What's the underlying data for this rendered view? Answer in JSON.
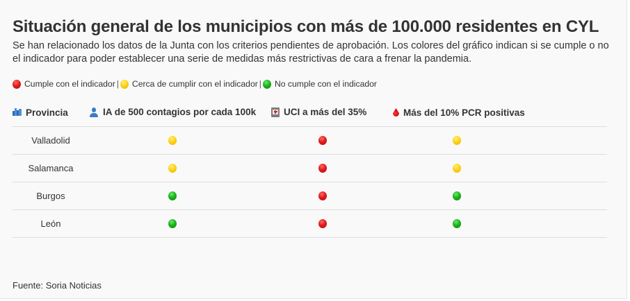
{
  "title": "Situación general de los municipios con más de 100.000 residentes en CYL",
  "subtitle": "Se han relacionado los datos de la Junta con los criterios pendientes de aprobación. Los colores del gráfico indican si se cumple o no el indicador para poder establecer una serie de medidas más restrictivas de cara a frenar la pandemia.",
  "legend": {
    "items": [
      {
        "status": "red",
        "label": "Cumple con el indicador"
      },
      {
        "status": "yellow",
        "label": "Cerca de cumplir con el indicador"
      },
      {
        "status": "green",
        "label": "No cumple con el indicador"
      }
    ],
    "separator": "|"
  },
  "colors": {
    "red": "#e01b1b",
    "yellow": "#ffd21a",
    "green": "#1bb31b",
    "text": "#333333",
    "background": "#f9f9f9",
    "rule": "#dddddd"
  },
  "table": {
    "headers": [
      {
        "icon": "city-icon",
        "label": "Provincia"
      },
      {
        "icon": "person-icon",
        "label": "IA de 500 contagios por cada 100k"
      },
      {
        "icon": "hospital-icon",
        "label": "UCI a más del 35%"
      },
      {
        "icon": "blood-drop-icon",
        "label": "Más del 10% PCR positivas"
      }
    ],
    "rows": [
      {
        "provincia": "Valladolid",
        "ia": "yellow",
        "uci": "red",
        "pcr": "yellow"
      },
      {
        "provincia": "Salamanca",
        "ia": "yellow",
        "uci": "red",
        "pcr": "yellow"
      },
      {
        "provincia": "Burgos",
        "ia": "green",
        "uci": "red",
        "pcr": "green"
      },
      {
        "provincia": "León",
        "ia": "green",
        "uci": "red",
        "pcr": "green"
      }
    ]
  },
  "footer": "Fuente: Soria Noticias"
}
